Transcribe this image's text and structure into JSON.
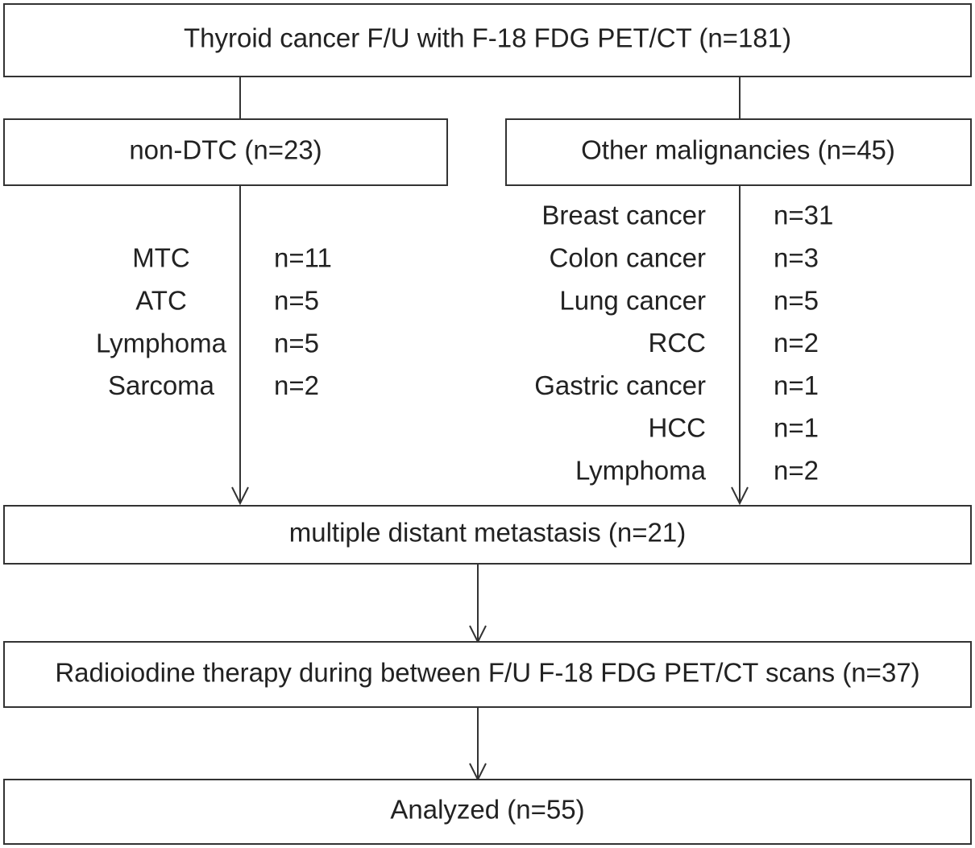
{
  "boxes": {
    "top": {
      "label": "Thyroid cancer F/U with F-18 FDG PET/CT (n=181)"
    },
    "left": {
      "label": "non-DTC (n=23)",
      "items": [
        {
          "name": "MTC",
          "count": "n=11"
        },
        {
          "name": "ATC",
          "count": "n=5"
        },
        {
          "name": "Lymphoma",
          "count": "n=5"
        },
        {
          "name": "Sarcoma",
          "count": "n=2"
        }
      ]
    },
    "right": {
      "label": "Other malignancies (n=45)",
      "items": [
        {
          "name": "Breast cancer",
          "count": "n=31"
        },
        {
          "name": "Colon cancer",
          "count": "n=3"
        },
        {
          "name": "Lung cancer",
          "count": "n=5"
        },
        {
          "name": "RCC",
          "count": "n=2"
        },
        {
          "name": "Gastric cancer",
          "count": "n=1"
        },
        {
          "name": "HCC",
          "count": "n=1"
        },
        {
          "name": "Lymphoma",
          "count": "n=2"
        }
      ]
    },
    "metastasis": {
      "label": "multiple distant metastasis (n=21)"
    },
    "radioiodine": {
      "label": "Radioiodine therapy during between F/U F-18 FDG PET/CT scans (n=37)"
    },
    "analyzed": {
      "label": "Analyzed (n=55)"
    }
  }
}
